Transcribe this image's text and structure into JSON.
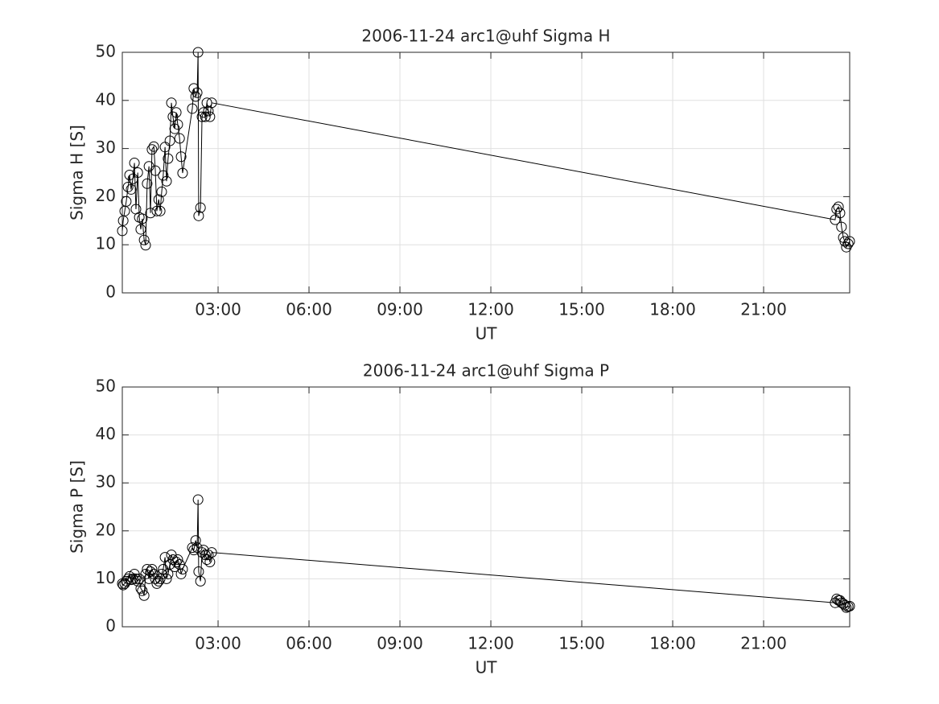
{
  "chart_data": [
    {
      "type": "line",
      "title": "2006-11-24  arc1@uhf Sigma H",
      "x_label": "UT",
      "y_label": "Sigma H [S]",
      "marker": "circle",
      "color": "#000000",
      "grid": true,
      "xlim": [
        -0.16,
        23.84
      ],
      "ylim": [
        0,
        50
      ],
      "xticks": [
        {
          "value": 3,
          "label": "03:00"
        },
        {
          "value": 6,
          "label": "06:00"
        },
        {
          "value": 9,
          "label": "09:00"
        },
        {
          "value": 12,
          "label": "12:00"
        },
        {
          "value": 15,
          "label": "15:00"
        },
        {
          "value": 18,
          "label": "18:00"
        },
        {
          "value": 21,
          "label": "21:00"
        }
      ],
      "yticks": [
        0,
        10,
        20,
        30,
        40,
        50
      ],
      "x": [
        -0.16,
        -0.13,
        -0.08,
        -0.03,
        0.03,
        0.08,
        0.13,
        0.19,
        0.24,
        0.29,
        0.35,
        0.4,
        0.45,
        0.5,
        0.56,
        0.61,
        0.66,
        0.72,
        0.77,
        0.82,
        0.88,
        0.93,
        0.98,
        1.04,
        1.09,
        1.14,
        1.19,
        1.25,
        1.3,
        1.35,
        1.41,
        1.46,
        1.51,
        1.57,
        1.62,
        1.67,
        1.73,
        1.78,
        1.83,
        2.15,
        2.2,
        2.26,
        2.31,
        2.34,
        2.36,
        2.42,
        2.47,
        2.52,
        2.58,
        2.63,
        2.68,
        2.73,
        2.79,
        23.36,
        23.41,
        23.47,
        23.52,
        23.57,
        23.63,
        23.68,
        23.73,
        23.79,
        23.84
      ],
      "values": [
        12.9,
        15,
        17,
        19,
        22,
        24.5,
        21.5,
        23.7,
        27,
        17.4,
        25,
        15.7,
        13.2,
        15.4,
        11,
        9.9,
        22.7,
        26.3,
        16.6,
        29.8,
        30.4,
        25.4,
        17,
        19.4,
        17,
        21,
        24.4,
        30.3,
        23.2,
        27.9,
        31.6,
        39.5,
        36.6,
        34.1,
        37.5,
        35,
        32.1,
        28.3,
        24.9,
        38.3,
        42.5,
        40.8,
        41.6,
        50,
        16,
        17.7,
        36.6,
        37.5,
        36.6,
        39.5,
        37.8,
        36.6,
        39.5,
        15.2,
        17.4,
        17.9,
        16.6,
        13.7,
        11.5,
        10.7,
        9.5,
        10.2,
        10.7
      ]
    },
    {
      "type": "line",
      "title": "2006-11-24  arc1@uhf Sigma P",
      "x_label": "UT",
      "y_label": "Sigma P [S]",
      "marker": "circle",
      "color": "#000000",
      "grid": true,
      "xlim": [
        -0.16,
        23.84
      ],
      "ylim": [
        0,
        50
      ],
      "xticks": [
        {
          "value": 3,
          "label": "03:00"
        },
        {
          "value": 6,
          "label": "06:00"
        },
        {
          "value": 9,
          "label": "09:00"
        },
        {
          "value": 12,
          "label": "12:00"
        },
        {
          "value": 15,
          "label": "15:00"
        },
        {
          "value": 18,
          "label": "18:00"
        },
        {
          "value": 21,
          "label": "21:00"
        }
      ],
      "yticks": [
        0,
        10,
        20,
        30,
        40,
        50
      ],
      "x": [
        -0.16,
        -0.13,
        -0.08,
        -0.03,
        0.03,
        0.08,
        0.13,
        0.19,
        0.24,
        0.29,
        0.35,
        0.4,
        0.45,
        0.5,
        0.56,
        0.61,
        0.66,
        0.72,
        0.77,
        0.82,
        0.88,
        0.93,
        0.98,
        1.04,
        1.09,
        1.14,
        1.19,
        1.25,
        1.3,
        1.35,
        1.41,
        1.46,
        1.51,
        1.57,
        1.62,
        1.67,
        1.73,
        1.78,
        1.83,
        2.15,
        2.2,
        2.26,
        2.31,
        2.34,
        2.36,
        2.42,
        2.47,
        2.52,
        2.58,
        2.63,
        2.68,
        2.73,
        2.79,
        23.36,
        23.41,
        23.47,
        23.52,
        23.57,
        23.63,
        23.68,
        23.73,
        23.79,
        23.84
      ],
      "values": [
        9,
        8.7,
        9,
        9.5,
        10,
        10.5,
        9.8,
        10,
        11,
        10,
        9.5,
        10,
        8,
        7.5,
        6.5,
        11,
        12,
        10,
        11.5,
        12,
        11,
        10,
        9,
        9.5,
        10,
        11,
        12,
        14.5,
        10,
        11,
        13,
        15,
        14,
        12.5,
        13.5,
        14,
        13,
        11,
        12,
        16.5,
        16,
        18,
        16.5,
        26.5,
        11.5,
        9.5,
        15.5,
        16,
        15,
        14,
        15,
        13.5,
        15.5,
        5,
        5.8,
        5.5,
        5.5,
        5,
        4.8,
        4.5,
        4,
        4.2,
        4.3
      ]
    }
  ]
}
